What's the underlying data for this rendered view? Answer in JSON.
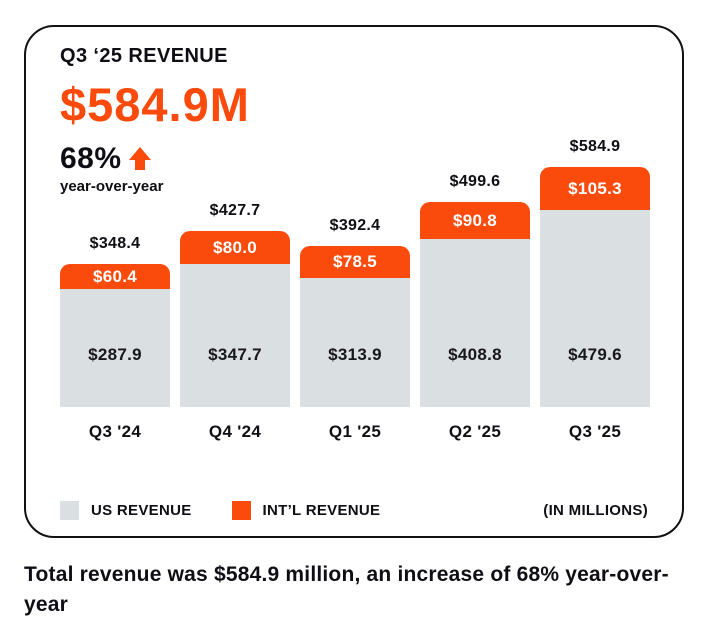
{
  "header": {
    "title": "Q3 ‘25 REVENUE",
    "big_number": "$584.9M",
    "growth": "68%",
    "growth_icon": "up-arrow-icon",
    "growth_sublabel": "year-over-year"
  },
  "chart_data": {
    "type": "bar",
    "stacked": true,
    "title": "Q3 '25 REVENUE",
    "categories": [
      "Q3 '24",
      "Q4 '24",
      "Q1 '25",
      "Q2 '25",
      "Q3 '25"
    ],
    "series": [
      {
        "name": "US REVENUE",
        "color": "#DADFE1",
        "values": [
          287.9,
          347.7,
          313.9,
          408.8,
          479.6
        ]
      },
      {
        "name": "INT’L REVENUE",
        "color": "#FA4A0C",
        "values": [
          60.4,
          80.0,
          78.5,
          90.8,
          105.3
        ]
      }
    ],
    "totals": [
      348.4,
      427.7,
      392.4,
      499.6,
      584.9
    ],
    "value_prefix": "$",
    "units_note": "(IN MILLIONS)",
    "legend_position": "bottom",
    "grid": false
  },
  "legend": {
    "items": [
      {
        "label": "US REVENUE",
        "color": "#DADFE1"
      },
      {
        "label": "INT’L REVENUE",
        "color": "#FA4A0C"
      }
    ],
    "units": "(IN MILLIONS)"
  },
  "caption": "Total revenue was $584.9 million, an increase of 68% year-over-year",
  "colors": {
    "accent_orange": "#FA4A0C",
    "bar_gray": "#DADFE1",
    "text_black": "#0e0e14",
    "card_border": "#111111",
    "background": "#ffffff"
  }
}
